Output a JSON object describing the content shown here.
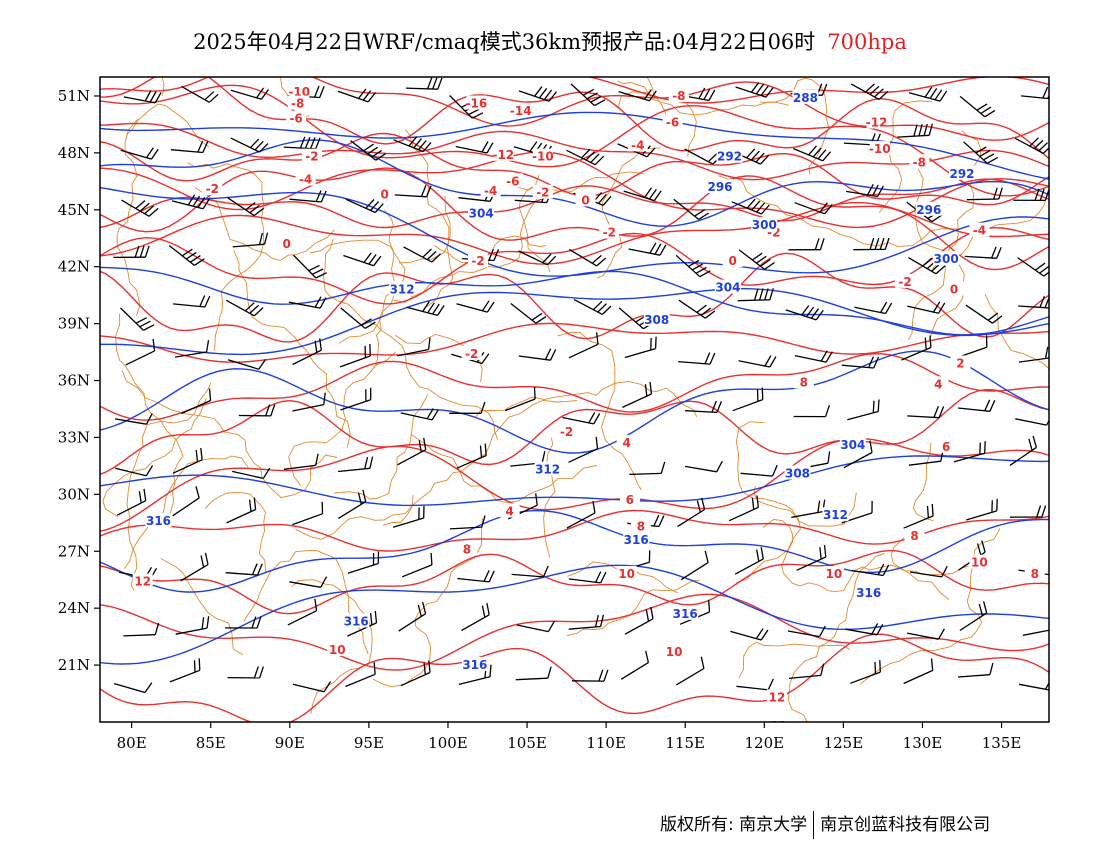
{
  "title": {
    "main": "2025年04月22日WRF/cmaq模式36km预报产品:04月22日06时",
    "level": "700hpa"
  },
  "colors": {
    "temperature": "#e83030",
    "height": "#1e3fe0",
    "border": "#e08a30",
    "wind": "#000000"
  },
  "axes": {
    "lat_labels": [
      "51N",
      "48N",
      "45N",
      "42N",
      "39N",
      "36N",
      "33N",
      "30N",
      "27N",
      "24N",
      "21N"
    ],
    "lat_values": [
      51,
      48,
      45,
      42,
      39,
      36,
      33,
      30,
      27,
      24,
      21
    ],
    "lon_labels": [
      "80E",
      "85E",
      "90E",
      "95E",
      "100E",
      "105E",
      "110E",
      "115E",
      "120E",
      "125E",
      "130E",
      "135E"
    ],
    "lon_values": [
      80,
      85,
      90,
      95,
      100,
      105,
      110,
      115,
      120,
      125,
      130,
      135
    ],
    "lon_range": [
      78,
      138
    ],
    "lat_range": [
      18,
      52
    ]
  },
  "temperature_labels": [
    {
      "text": "-10",
      "lon": 90.6,
      "lat": 51.2
    },
    {
      "text": "-8",
      "lon": 90.5,
      "lat": 50.6
    },
    {
      "text": "-6",
      "lon": 90.4,
      "lat": 49.8
    },
    {
      "text": "-16",
      "lon": 101.8,
      "lat": 50.6
    },
    {
      "text": "-14",
      "lon": 104.6,
      "lat": 50.2
    },
    {
      "text": "-12",
      "lon": 103.5,
      "lat": 47.9
    },
    {
      "text": "-10",
      "lon": 106.0,
      "lat": 47.8
    },
    {
      "text": "-2",
      "lon": 91.4,
      "lat": 47.8
    },
    {
      "text": "-4",
      "lon": 91.0,
      "lat": 46.6
    },
    {
      "text": "-2",
      "lon": 85.1,
      "lat": 46.1
    },
    {
      "text": "-6",
      "lon": 104.1,
      "lat": 46.5
    },
    {
      "text": "-4",
      "lon": 102.7,
      "lat": 46.0
    },
    {
      "text": "-2",
      "lon": 106.0,
      "lat": 45.9
    },
    {
      "text": "0",
      "lon": 96.0,
      "lat": 45.8
    },
    {
      "text": "0",
      "lon": 108.7,
      "lat": 45.5
    },
    {
      "text": "0",
      "lon": 89.8,
      "lat": 43.2
    },
    {
      "text": "-2",
      "lon": 110.2,
      "lat": 43.8
    },
    {
      "text": "-2",
      "lon": 101.9,
      "lat": 42.3
    },
    {
      "text": "-8",
      "lon": 114.6,
      "lat": 51.0
    },
    {
      "text": "-6",
      "lon": 114.2,
      "lat": 49.6
    },
    {
      "text": "-4",
      "lon": 112.0,
      "lat": 48.4
    },
    {
      "text": "-12",
      "lon": 127.1,
      "lat": 49.6
    },
    {
      "text": "-10",
      "lon": 127.3,
      "lat": 48.2
    },
    {
      "text": "-8",
      "lon": 129.8,
      "lat": 47.5
    },
    {
      "text": "-2",
      "lon": 120.6,
      "lat": 43.8
    },
    {
      "text": "0",
      "lon": 118.0,
      "lat": 42.3
    },
    {
      "text": "-2",
      "lon": 128.9,
      "lat": 41.2
    },
    {
      "text": "0",
      "lon": 132.0,
      "lat": 40.8
    },
    {
      "text": "-4",
      "lon": 133.6,
      "lat": 43.9
    },
    {
      "text": "-2",
      "lon": 101.5,
      "lat": 37.4
    },
    {
      "text": "-2",
      "lon": 107.5,
      "lat": 33.3
    },
    {
      "text": "2",
      "lon": 132.4,
      "lat": 36.9
    },
    {
      "text": "4",
      "lon": 131.0,
      "lat": 35.8
    },
    {
      "text": "8",
      "lon": 122.5,
      "lat": 35.9
    },
    {
      "text": "4",
      "lon": 111.3,
      "lat": 32.7
    },
    {
      "text": "6",
      "lon": 131.5,
      "lat": 32.5
    },
    {
      "text": "6",
      "lon": 111.5,
      "lat": 29.7
    },
    {
      "text": "4",
      "lon": 103.9,
      "lat": 29.1
    },
    {
      "text": "8",
      "lon": 112.2,
      "lat": 28.3
    },
    {
      "text": "8",
      "lon": 129.5,
      "lat": 27.8
    },
    {
      "text": "8",
      "lon": 101.2,
      "lat": 27.1
    },
    {
      "text": "10",
      "lon": 111.3,
      "lat": 25.8
    },
    {
      "text": "10",
      "lon": 133.6,
      "lat": 26.4
    },
    {
      "text": "8",
      "lon": 137.1,
      "lat": 25.8
    },
    {
      "text": "12",
      "lon": 80.7,
      "lat": 25.4
    },
    {
      "text": "10",
      "lon": 124.4,
      "lat": 25.8
    },
    {
      "text": "10",
      "lon": 93.0,
      "lat": 21.8
    },
    {
      "text": "10",
      "lon": 114.3,
      "lat": 21.7
    },
    {
      "text": "12",
      "lon": 120.8,
      "lat": 19.3
    },
    {
      "text": "12",
      "lon": 120.9,
      "lat": 17.8
    }
  ],
  "height_labels": [
    {
      "text": "288",
      "lon": 122.6,
      "lat": 50.9
    },
    {
      "text": "292",
      "lon": 117.8,
      "lat": 47.8
    },
    {
      "text": "292",
      "lon": 132.5,
      "lat": 46.9
    },
    {
      "text": "296",
      "lon": 117.2,
      "lat": 46.2
    },
    {
      "text": "296",
      "lon": 130.4,
      "lat": 45.0
    },
    {
      "text": "304",
      "lon": 102.1,
      "lat": 44.8
    },
    {
      "text": "300",
      "lon": 120.0,
      "lat": 44.2
    },
    {
      "text": "300",
      "lon": 131.5,
      "lat": 42.4
    },
    {
      "text": "312",
      "lon": 97.1,
      "lat": 40.8
    },
    {
      "text": "304",
      "lon": 117.7,
      "lat": 40.9
    },
    {
      "text": "308",
      "lon": 113.2,
      "lat": 39.2
    },
    {
      "text": "304",
      "lon": 125.6,
      "lat": 32.6
    },
    {
      "text": "312",
      "lon": 106.3,
      "lat": 31.3
    },
    {
      "text": "308",
      "lon": 122.1,
      "lat": 31.1
    },
    {
      "text": "312",
      "lon": 124.5,
      "lat": 28.9
    },
    {
      "text": "316",
      "lon": 81.7,
      "lat": 28.6
    },
    {
      "text": "316",
      "lon": 111.9,
      "lat": 27.6
    },
    {
      "text": "316",
      "lon": 126.6,
      "lat": 24.8
    },
    {
      "text": "316",
      "lon": 94.2,
      "lat": 23.3
    },
    {
      "text": "316",
      "lon": 115.0,
      "lat": 23.7
    },
    {
      "text": "316",
      "lon": 101.7,
      "lat": 21.0
    }
  ],
  "footer": {
    "left": "版权所有: 南京大学",
    "right": "南京创蓝科技有限公司"
  }
}
